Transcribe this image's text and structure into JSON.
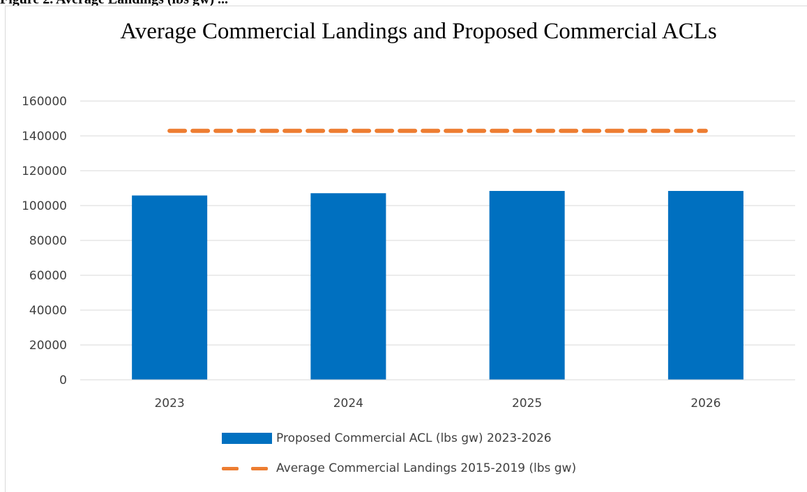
{
  "caption": "Figure 2. Average Landings (lbs gw) ...",
  "chart_data": {
    "type": "bar",
    "title": "Average Commercial Landings and Proposed Commercial ACLs",
    "categories": [
      "2023",
      "2024",
      "2025",
      "2026"
    ],
    "series": [
      {
        "name": "Proposed Commercial ACL (lbs gw) 2023-2026",
        "type": "bar",
        "color": "#0070c0",
        "values": [
          105800,
          107100,
          108400,
          108400
        ]
      },
      {
        "name": "Average Commercial Landings 2015-2019 (lbs gw)",
        "type": "line",
        "style": "dashed",
        "color": "#ed7d31",
        "values": [
          142900,
          142900,
          142900,
          142900
        ]
      }
    ],
    "ylim": [
      0,
      160000
    ],
    "yticks": [
      "0",
      "20000",
      "40000",
      "60000",
      "80000",
      "100000",
      "120000",
      "140000",
      "160000"
    ],
    "xlabel": "",
    "ylabel": "",
    "grid": true,
    "legend_position": "bottom"
  }
}
